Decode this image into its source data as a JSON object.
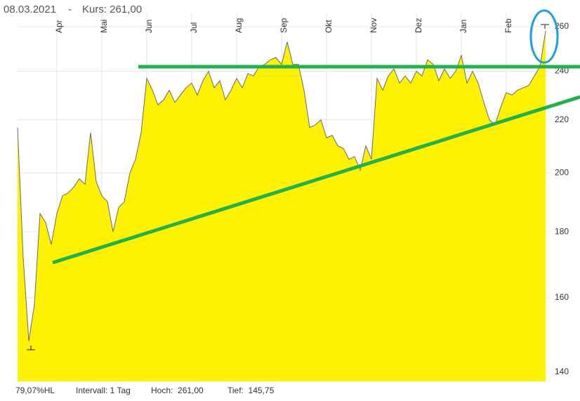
{
  "header": {
    "date": "08.03.2021",
    "separator": "-",
    "price": "Kurs: 261,00"
  },
  "footer": {
    "range": "79,07%HL",
    "interval": "Intervall: 1 Tag",
    "high": "Hoch:  261,00",
    "low": "Tief:  145,75"
  },
  "chart_data": {
    "type": "area",
    "color": "#fff200",
    "line_color": "#6b6b6b",
    "log_scale": true,
    "grid": true,
    "categories": [
      null,
      null,
      null,
      null,
      null,
      null,
      null,
      "Apr",
      null,
      null,
      null,
      null,
      null,
      null,
      null,
      "Mai",
      null,
      null,
      null,
      null,
      null,
      null,
      null,
      "Jun",
      null,
      null,
      null,
      null,
      null,
      null,
      null,
      "Jul",
      null,
      null,
      null,
      null,
      null,
      null,
      null,
      "Aug",
      null,
      null,
      null,
      null,
      null,
      null,
      null,
      "Sep",
      null,
      null,
      null,
      null,
      null,
      null,
      null,
      "Okt",
      null,
      null,
      null,
      null,
      null,
      null,
      null,
      "Nov",
      null,
      null,
      null,
      null,
      null,
      null,
      null,
      "Dez",
      null,
      null,
      null,
      null,
      null,
      null,
      null,
      "Jan",
      null,
      null,
      null,
      null,
      null,
      null,
      null,
      "Feb",
      null,
      null,
      null,
      null,
      null,
      null,
      null
    ],
    "values": [
      217,
      172,
      148,
      158,
      186,
      183,
      176,
      186,
      192,
      193,
      195,
      198,
      196,
      215,
      197,
      192,
      190,
      180,
      188,
      190,
      200,
      205,
      215,
      237,
      232,
      226,
      228,
      232,
      227,
      230,
      233,
      235,
      230,
      236,
      240,
      233,
      236,
      228,
      232,
      237,
      233,
      239,
      238,
      242,
      243,
      245,
      246,
      243,
      253,
      243,
      243,
      232,
      217,
      218,
      220,
      213,
      214,
      210,
      209,
      205,
      206,
      201,
      210,
      205,
      237,
      232,
      238,
      241,
      235,
      238,
      235,
      240,
      238,
      245,
      243,
      236,
      241,
      237,
      240,
      247,
      235,
      240,
      235,
      227,
      220,
      218,
      225,
      231,
      230,
      232,
      233,
      234,
      238,
      242,
      258
    ],
    "ylim": [
      137.7,
      266.6
    ],
    "yticks": [
      140,
      160,
      180,
      200,
      220,
      240,
      260
    ]
  }
}
